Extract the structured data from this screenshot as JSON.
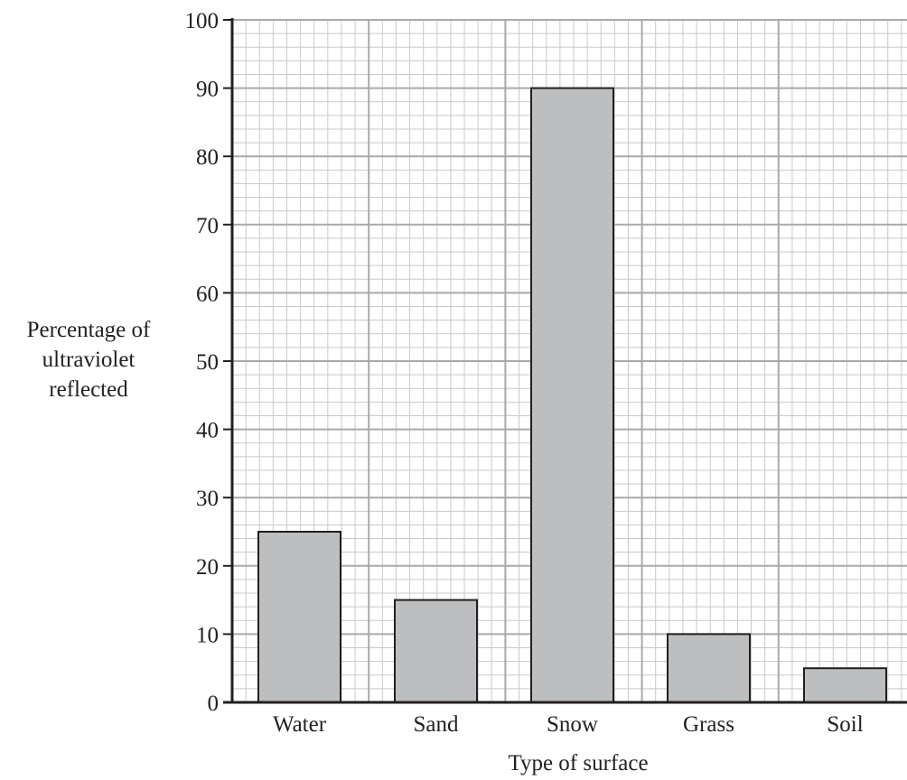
{
  "chart_data": {
    "type": "bar",
    "categories": [
      "Water",
      "Sand",
      "Snow",
      "Grass",
      "Soil"
    ],
    "values": [
      25,
      15,
      90,
      10,
      5
    ],
    "title": "",
    "xlabel": "Type of surface",
    "ylabel_lines": [
      "Percentage of",
      "ultraviolet",
      "reflected"
    ],
    "ylim": [
      0,
      100
    ],
    "yticks": [
      "0",
      "10",
      "20",
      "30",
      "40",
      "50",
      "60",
      "70",
      "80",
      "90",
      "100"
    ],
    "grid": true,
    "bar_color": "#bcbec0",
    "bar_outline_color": "#231f20",
    "grid_major_color": "#a7a9ac",
    "grid_minor_color": "#c7c8ca",
    "axis_color": "#231f20"
  }
}
